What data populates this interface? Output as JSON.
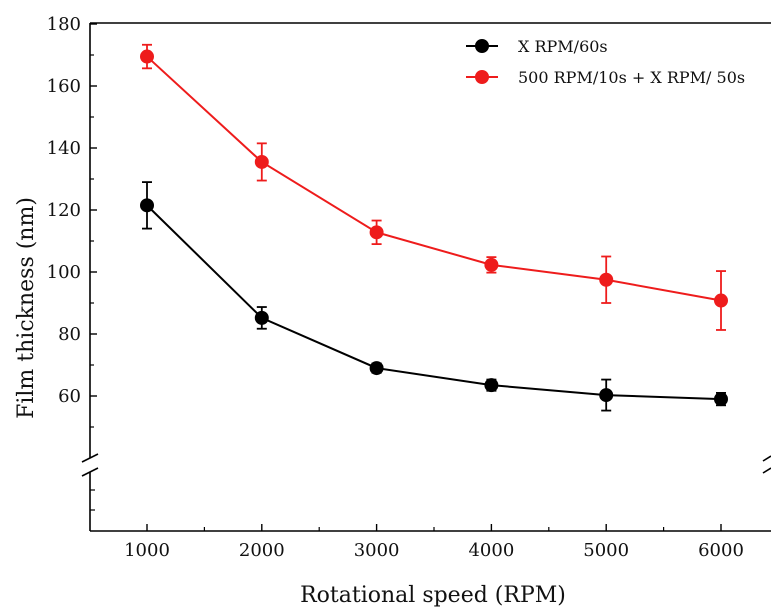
{
  "chart_data": {
    "type": "line",
    "xlabel": "Rotational speed (RPM)",
    "ylabel": "Film thickness (nm)",
    "x": [
      1000,
      2000,
      3000,
      4000,
      5000,
      6000
    ],
    "x_ticks": [
      "1000",
      "2000",
      "3000",
      "4000",
      "5000",
      "6000"
    ],
    "y_ticks": [
      "60",
      "80",
      "100",
      "120",
      "140",
      "160",
      "180"
    ],
    "xlim": [
      500,
      6500
    ],
    "ylim": [
      20,
      180
    ],
    "y_axis_break": true,
    "grid": false,
    "legend_position": "top-right",
    "series": [
      {
        "name": "X RPM/60s",
        "color": "#000000",
        "values": [
          121.5,
          85.2,
          69.0,
          63.5,
          60.3,
          59.0
        ],
        "errors": [
          7.5,
          3.5,
          1.5,
          1.8,
          5.0,
          2.0
        ]
      },
      {
        "name": "500 RPM/10s + X RPM/ 50s",
        "color": "#ee1c1c",
        "values": [
          169.5,
          135.5,
          112.8,
          102.3,
          97.5,
          90.8
        ],
        "errors": [
          3.8,
          6.0,
          3.8,
          2.5,
          7.5,
          9.5
        ]
      }
    ]
  }
}
